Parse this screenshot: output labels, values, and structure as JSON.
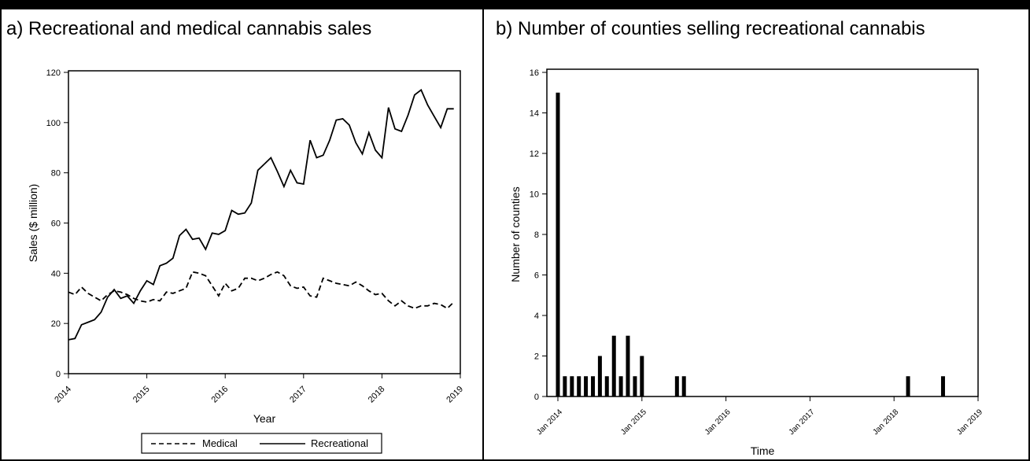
{
  "panel_a": {
    "title": "a) Recreational and medical cannabis sales",
    "legend": {
      "medical": "Medical",
      "recreational": "Recreational"
    }
  },
  "panel_b": {
    "title": "b) Number of counties selling recreational cannabis"
  },
  "chart_data": [
    {
      "type": "line",
      "title": "a) Recreational and medical cannabis sales",
      "xlabel": "Year",
      "ylabel": "Sales ($ million)",
      "xlim": [
        2014,
        2019
      ],
      "ylim": [
        0,
        120
      ],
      "xticks": [
        "2014",
        "2015",
        "2016",
        "2017",
        "2018",
        "2019"
      ],
      "yticks": [
        "0",
        "20",
        "40",
        "60",
        "80",
        "100",
        "120"
      ],
      "legend_position": "bottom",
      "grid": false,
      "series": [
        {
          "name": "Medical",
          "style": "dashed",
          "x": [
            2014.0,
            2014.083,
            2014.167,
            2014.25,
            2014.333,
            2014.417,
            2014.5,
            2014.583,
            2014.667,
            2014.75,
            2014.833,
            2014.917,
            2015.0,
            2015.083,
            2015.167,
            2015.25,
            2015.333,
            2015.417,
            2015.5,
            2015.583,
            2015.667,
            2015.75,
            2015.833,
            2015.917,
            2016.0,
            2016.083,
            2016.167,
            2016.25,
            2016.333,
            2016.417,
            2016.5,
            2016.583,
            2016.667,
            2016.75,
            2016.833,
            2016.917,
            2017.0,
            2017.083,
            2017.167,
            2017.25,
            2017.333,
            2017.417,
            2017.5,
            2017.583,
            2017.667,
            2017.75,
            2017.833,
            2017.917,
            2018.0,
            2018.083,
            2018.167,
            2018.25,
            2018.333,
            2018.417,
            2018.5,
            2018.583,
            2018.667,
            2018.75,
            2018.833,
            2018.917
          ],
          "values": [
            32.5,
            31.5,
            34.5,
            32,
            30.5,
            29,
            31.5,
            33,
            32.5,
            31.5,
            30,
            29,
            28.5,
            29.5,
            29,
            32.5,
            32,
            33,
            34,
            40.5,
            40,
            39,
            35,
            31,
            36,
            33,
            34,
            38,
            38,
            37,
            38,
            39.5,
            40.5,
            39,
            35,
            34,
            34.5,
            31,
            30.5,
            38,
            37,
            36,
            35.5,
            35,
            36.5,
            35,
            33,
            31.5,
            32,
            29,
            27,
            29,
            27,
            26,
            27,
            27,
            28,
            27.5,
            26,
            28.5
          ]
        },
        {
          "name": "Recreational",
          "style": "solid",
          "x": [
            2014.0,
            2014.083,
            2014.167,
            2014.25,
            2014.333,
            2014.417,
            2014.5,
            2014.583,
            2014.667,
            2014.75,
            2014.833,
            2014.917,
            2015.0,
            2015.083,
            2015.167,
            2015.25,
            2015.333,
            2015.417,
            2015.5,
            2015.583,
            2015.667,
            2015.75,
            2015.833,
            2015.917,
            2016.0,
            2016.083,
            2016.167,
            2016.25,
            2016.333,
            2016.417,
            2016.5,
            2016.583,
            2016.667,
            2016.75,
            2016.833,
            2016.917,
            2017.0,
            2017.083,
            2017.167,
            2017.25,
            2017.333,
            2017.417,
            2017.5,
            2017.583,
            2017.667,
            2017.75,
            2017.833,
            2017.917,
            2018.0,
            2018.083,
            2018.167,
            2018.25,
            2018.333,
            2018.417,
            2018.5,
            2018.583,
            2018.667,
            2018.75,
            2018.833,
            2018.917
          ],
          "values": [
            13.5,
            14,
            19.5,
            20.5,
            21.5,
            24.5,
            30.5,
            33.5,
            30,
            31,
            28,
            33,
            37,
            35.5,
            43,
            44,
            46,
            55,
            57.5,
            53.5,
            54,
            49.5,
            56,
            55.5,
            57,
            65,
            63.5,
            64,
            68,
            81,
            83.5,
            86,
            80.5,
            74.5,
            81,
            76,
            75.5,
            93,
            86,
            87,
            93,
            101,
            101.5,
            99,
            92,
            87.5,
            96,
            89,
            86,
            106,
            97.5,
            96.5,
            103,
            111,
            113,
            107,
            102.5,
            98,
            105.5,
            105.5
          ]
        }
      ]
    },
    {
      "type": "bar",
      "title": "b) Number of counties selling recreational cannabis",
      "xlabel": "Time",
      "ylabel": "Number of counties",
      "ylim": [
        0,
        16
      ],
      "xticks": [
        "Jan 2014",
        "Jan 2015",
        "Jan 2016",
        "Jan 2017",
        "Jan 2018",
        "Jan 2019"
      ],
      "yticks": [
        "0",
        "2",
        "4",
        "6",
        "8",
        "10",
        "12",
        "14",
        "16"
      ],
      "grid": false,
      "x": [
        2014.0,
        2014.083,
        2014.167,
        2014.25,
        2014.333,
        2014.417,
        2014.5,
        2014.583,
        2014.667,
        2014.75,
        2014.833,
        2014.917,
        2015.0,
        2015.417,
        2015.5,
        2018.167,
        2018.583
      ],
      "values": [
        15,
        1,
        1,
        1,
        1,
        1,
        2,
        1,
        3,
        1,
        3,
        1,
        2,
        1,
        1,
        1,
        1
      ]
    }
  ]
}
